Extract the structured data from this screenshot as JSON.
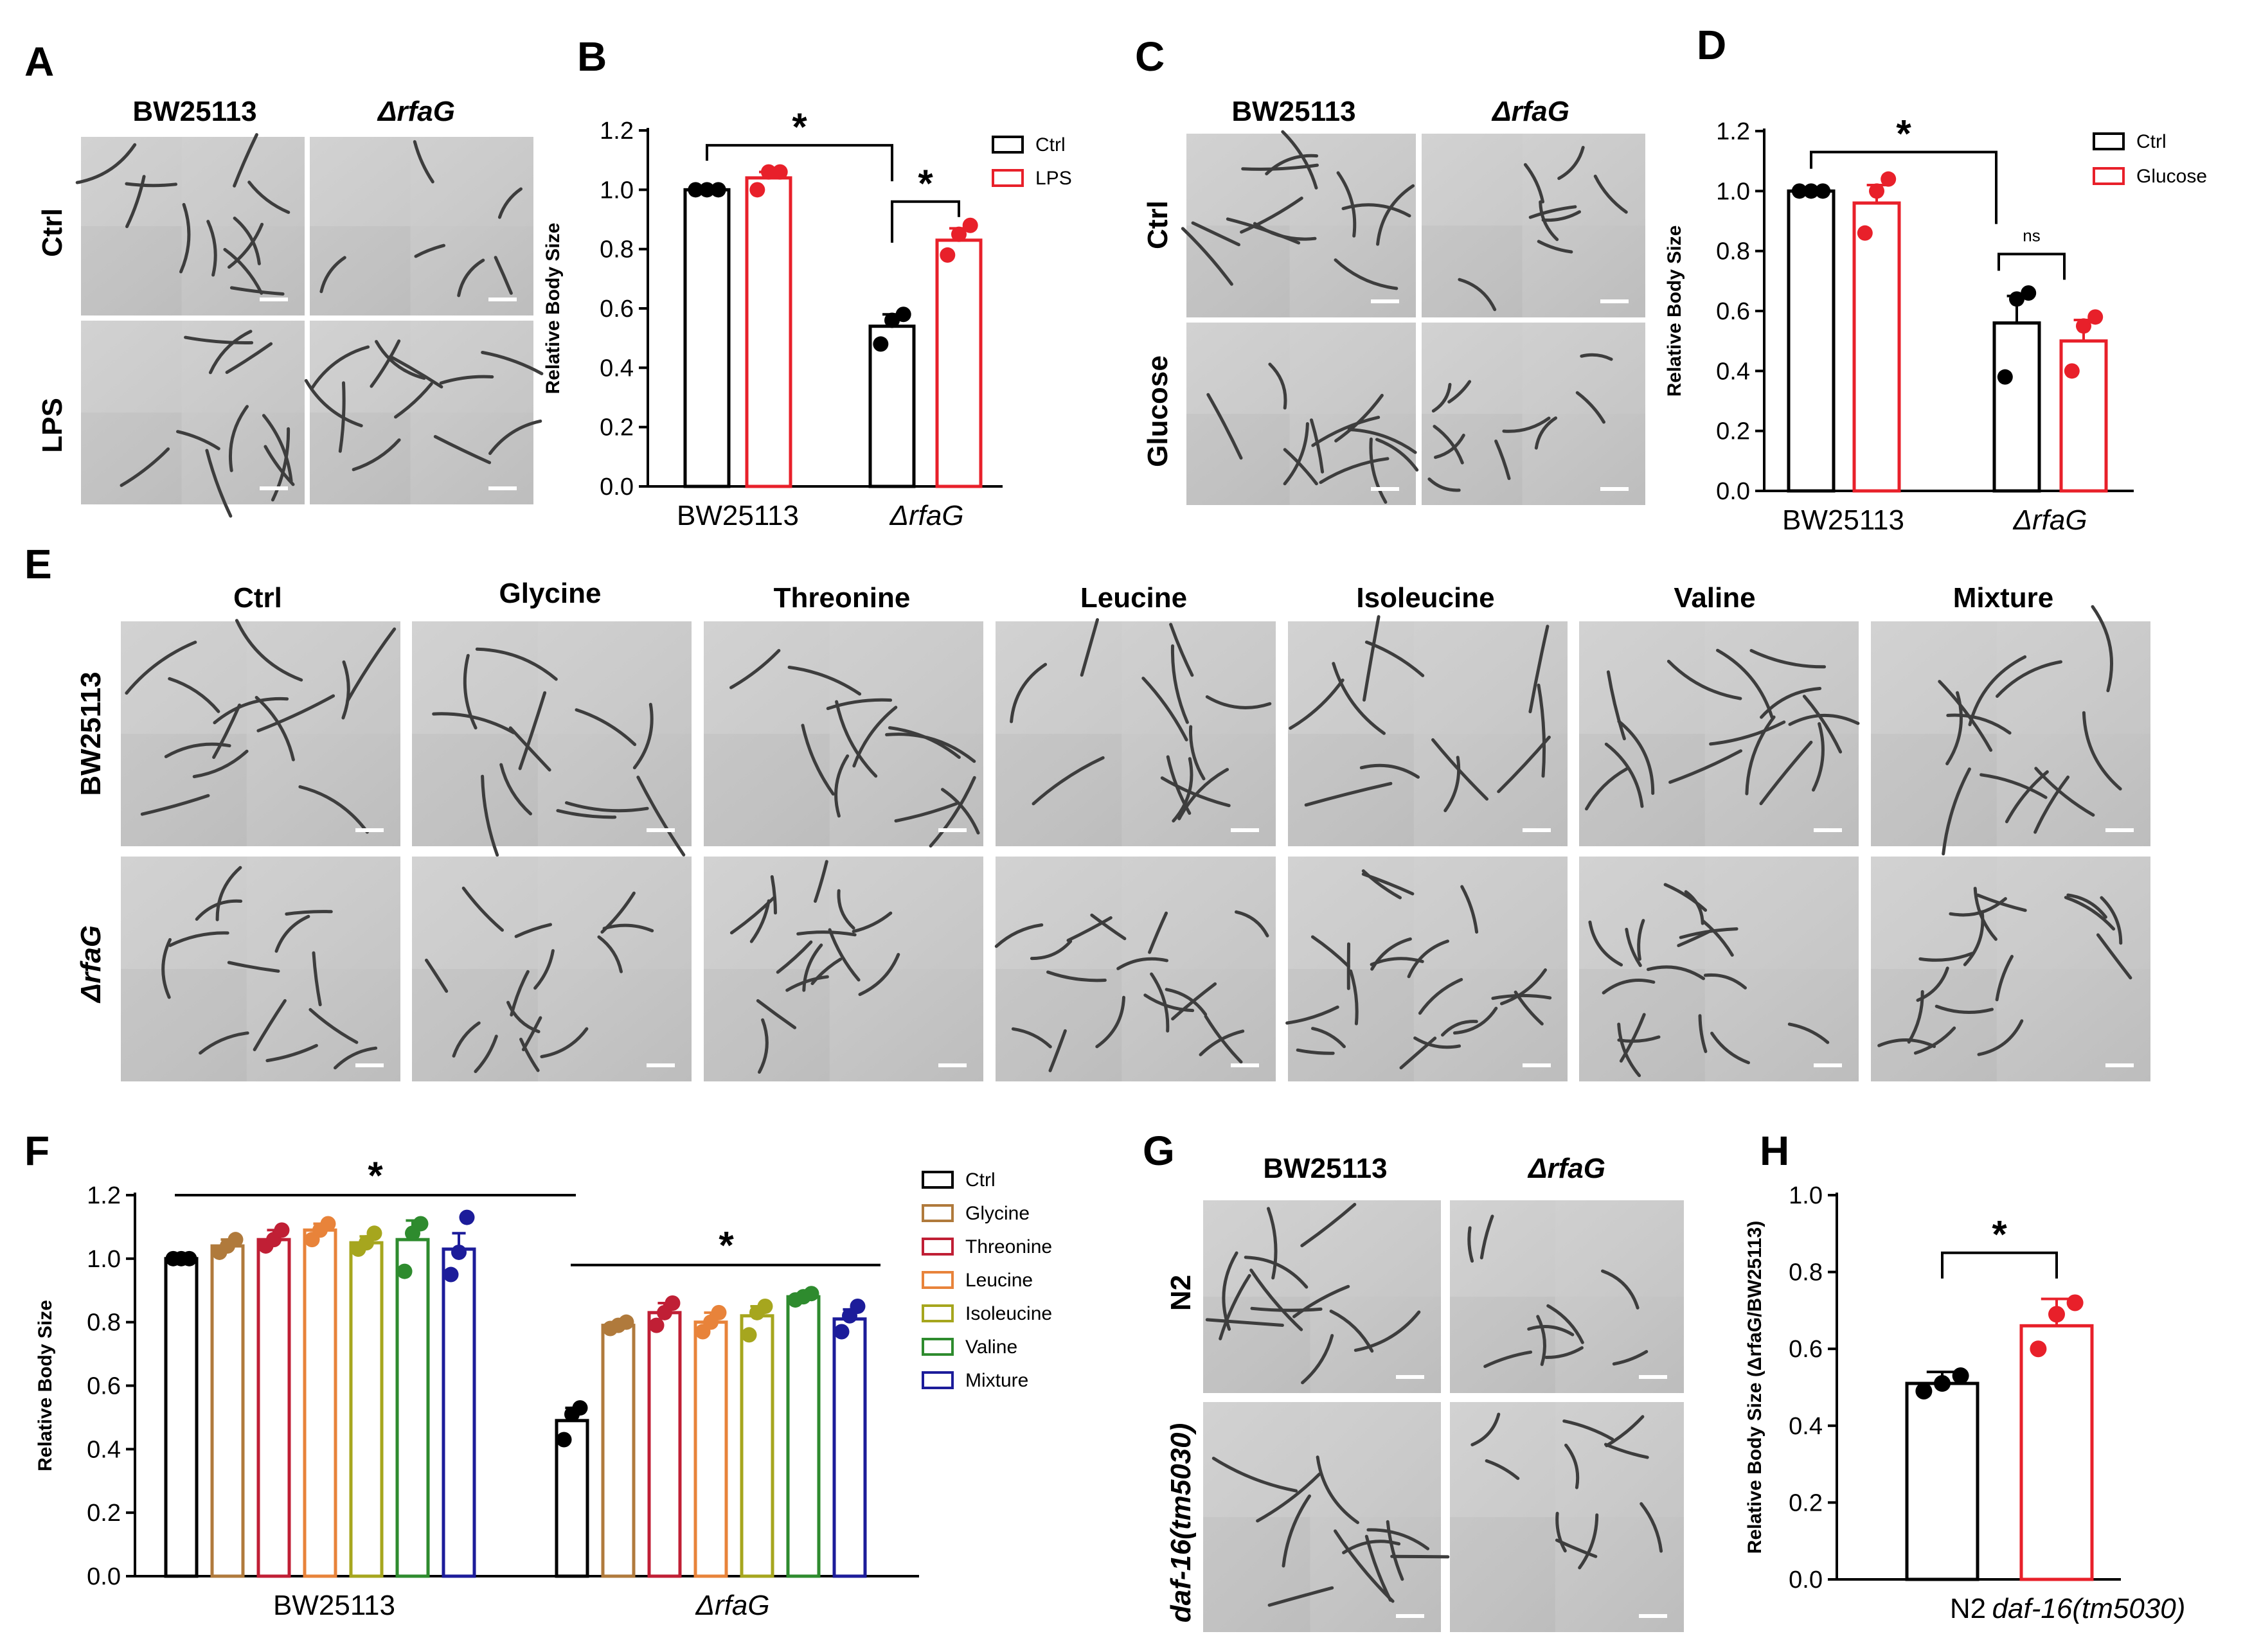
{
  "panels": {
    "A": {
      "letter": "A",
      "cols": [
        "BW25113",
        "ΔrfaG"
      ],
      "rows": [
        "Ctrl",
        "LPS"
      ]
    },
    "C": {
      "letter": "C",
      "cols": [
        "BW25113",
        "ΔrfaG"
      ],
      "rows": [
        "Ctrl",
        "Glucose"
      ]
    },
    "E": {
      "letter": "E",
      "cols": [
        "Ctrl",
        "Glycine",
        "Threonine",
        "Leucine",
        "Isoleucine",
        "Valine",
        "Mixture"
      ],
      "rows": [
        "BW25113",
        "ΔrfaG"
      ]
    },
    "G": {
      "letter": "G",
      "cols": [
        "BW25113",
        "ΔrfaG"
      ],
      "rows": [
        "N2",
        "daf-16(tm5030)"
      ]
    }
  },
  "chart_data": [
    {
      "id": "B",
      "letter": "B",
      "type": "bar",
      "ylabel": "Relative Body Size",
      "ylim": [
        0,
        1.2
      ],
      "yticks": [
        "0.0",
        "0.2",
        "0.4",
        "0.6",
        "0.8",
        "1.0",
        "1.2"
      ],
      "categories": [
        "BW25113",
        "ΔrfaG"
      ],
      "legend_position": "top-right",
      "series": [
        {
          "name": "Ctrl",
          "color": "#000000",
          "values": [
            1.0,
            0.54
          ],
          "errors": [
            0.0,
            0.04
          ],
          "points": [
            [
              1.0,
              1.0,
              1.0
            ],
            [
              0.48,
              0.56,
              0.58
            ]
          ]
        },
        {
          "name": "LPS",
          "color": "#e8202a",
          "values": [
            1.04,
            0.83
          ],
          "errors": [
            0.02,
            0.04
          ],
          "points": [
            [
              1.0,
              1.06,
              1.06
            ],
            [
              0.78,
              0.85,
              0.88
            ]
          ]
        }
      ],
      "annotations": [
        {
          "text": "*",
          "between": "BW25113 Ctrl vs ΔrfaG Ctrl"
        },
        {
          "text": "*",
          "between": "ΔrfaG Ctrl vs ΔrfaG LPS"
        }
      ]
    },
    {
      "id": "D",
      "letter": "D",
      "type": "bar",
      "ylabel": "Relative Body Size",
      "ylim": [
        0,
        1.2
      ],
      "yticks": [
        "0.0",
        "0.2",
        "0.4",
        "0.6",
        "0.8",
        "1.0",
        "1.2"
      ],
      "categories": [
        "BW25113",
        "ΔrfaG"
      ],
      "legend_position": "top-right",
      "series": [
        {
          "name": "Ctrl",
          "color": "#000000",
          "values": [
            1.0,
            0.56
          ],
          "errors": [
            0.0,
            0.09
          ],
          "points": [
            [
              1.0,
              1.0,
              1.0
            ],
            [
              0.38,
              0.64,
              0.66
            ]
          ]
        },
        {
          "name": "Glucose",
          "color": "#e8202a",
          "values": [
            0.96,
            0.5
          ],
          "errors": [
            0.06,
            0.07
          ],
          "points": [
            [
              0.86,
              1.0,
              1.04
            ],
            [
              0.4,
              0.55,
              0.58
            ]
          ]
        }
      ],
      "annotations": [
        {
          "text": "*",
          "between": "BW25113 Ctrl vs ΔrfaG Ctrl"
        },
        {
          "text": "ns",
          "between": "ΔrfaG Ctrl vs ΔrfaG Glucose"
        }
      ]
    },
    {
      "id": "F",
      "letter": "F",
      "type": "bar",
      "ylabel": "Relative Body Size",
      "ylim": [
        0,
        1.2
      ],
      "yticks": [
        "0.0",
        "0.2",
        "0.4",
        "0.6",
        "0.8",
        "1.0",
        "1.2"
      ],
      "categories": [
        "BW25113",
        "ΔrfaG"
      ],
      "legend_position": "right",
      "series": [
        {
          "name": "Ctrl",
          "color": "#000000",
          "values": [
            1.0,
            0.49
          ],
          "errors": [
            0.0,
            0.04
          ],
          "points": [
            [
              1.0,
              1.0,
              1.0
            ],
            [
              0.43,
              0.51,
              0.53
            ]
          ]
        },
        {
          "name": "Glycine",
          "color": "#b07a3c",
          "values": [
            1.04,
            0.79
          ],
          "errors": [
            0.02,
            0.01
          ],
          "points": [
            [
              1.02,
              1.04,
              1.06
            ],
            [
              0.78,
              0.79,
              0.8
            ]
          ]
        },
        {
          "name": "Threonine",
          "color": "#c01f35",
          "values": [
            1.06,
            0.83
          ],
          "errors": [
            0.03,
            0.03
          ],
          "points": [
            [
              1.04,
              1.06,
              1.09
            ],
            [
              0.79,
              0.83,
              0.86
            ]
          ]
        },
        {
          "name": "Leucine",
          "color": "#e8833a",
          "values": [
            1.09,
            0.8
          ],
          "errors": [
            0.02,
            0.03
          ],
          "points": [
            [
              1.06,
              1.09,
              1.11
            ],
            [
              0.77,
              0.8,
              0.83
            ]
          ]
        },
        {
          "name": "Isoleucine",
          "color": "#a6a61e",
          "values": [
            1.05,
            0.82
          ],
          "errors": [
            0.02,
            0.03
          ],
          "points": [
            [
              1.03,
              1.05,
              1.08
            ],
            [
              0.76,
              0.83,
              0.85
            ]
          ]
        },
        {
          "name": "Valine",
          "color": "#2e8b2e",
          "values": [
            1.06,
            0.88
          ],
          "errors": [
            0.06,
            0.01
          ],
          "points": [
            [
              0.96,
              1.08,
              1.11
            ],
            [
              0.87,
              0.88,
              0.89
            ]
          ]
        },
        {
          "name": "Mixture",
          "color": "#1c1c9a",
          "values": [
            1.03,
            0.81
          ],
          "errors": [
            0.05,
            0.03
          ],
          "points": [
            [
              0.95,
              1.02,
              1.13
            ],
            [
              0.77,
              0.82,
              0.85
            ]
          ]
        }
      ],
      "annotations": [
        {
          "text": "*",
          "between": "BW25113 group"
        },
        {
          "text": "*",
          "between": "ΔrfaG group"
        }
      ]
    },
    {
      "id": "H",
      "letter": "H",
      "type": "bar",
      "ylabel": "Relative Body Size (ΔrfaG/BW25113)",
      "ylim": [
        0,
        1.0
      ],
      "yticks": [
        "0.0",
        "0.2",
        "0.4",
        "0.6",
        "0.8",
        "1.0"
      ],
      "categories": [
        "N2",
        "daf-16(tm5030)"
      ],
      "series": [
        {
          "name": "",
          "values": [
            0.51,
            0.66
          ],
          "errors": [
            0.03,
            0.07
          ],
          "colors": [
            "#000000",
            "#e8202a"
          ],
          "points": [
            [
              0.49,
              0.51,
              0.53
            ],
            [
              0.6,
              0.69,
              0.72
            ]
          ]
        }
      ],
      "annotations": [
        {
          "text": "*",
          "between": "N2 vs daf-16(tm5030)"
        }
      ]
    }
  ]
}
